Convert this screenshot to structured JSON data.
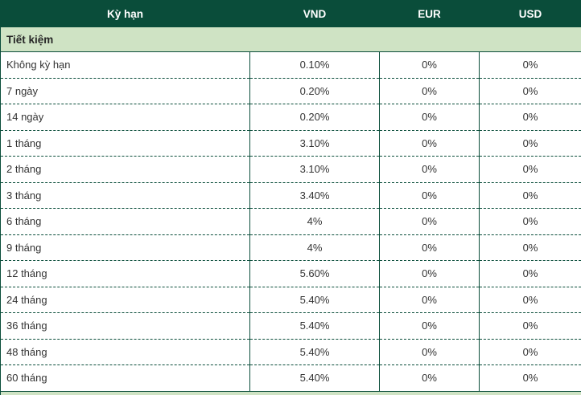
{
  "table": {
    "columns": [
      {
        "key": "term",
        "label": "Kỳ hạn"
      },
      {
        "key": "vnd",
        "label": "VND"
      },
      {
        "key": "eur",
        "label": "EUR"
      },
      {
        "key": "usd",
        "label": "USD"
      }
    ],
    "section": {
      "label": "Tiết kiệm"
    },
    "rows": [
      {
        "term": "Không kỳ hạn",
        "vnd": "0.10%",
        "eur": "0%",
        "usd": "0%"
      },
      {
        "term": "7 ngày",
        "vnd": "0.20%",
        "eur": "0%",
        "usd": "0%"
      },
      {
        "term": "14 ngày",
        "vnd": "0.20%",
        "eur": "0%",
        "usd": "0%"
      },
      {
        "term": "1 tháng",
        "vnd": "3.10%",
        "eur": "0%",
        "usd": "0%"
      },
      {
        "term": "2 tháng",
        "vnd": "3.10%",
        "eur": "0%",
        "usd": "0%"
      },
      {
        "term": "3 tháng",
        "vnd": "3.40%",
        "eur": "0%",
        "usd": "0%"
      },
      {
        "term": "6 tháng",
        "vnd": "4%",
        "eur": "0%",
        "usd": "0%"
      },
      {
        "term": "9 tháng",
        "vnd": "4%",
        "eur": "0%",
        "usd": "0%"
      },
      {
        "term": "12 tháng",
        "vnd": "5.60%",
        "eur": "0%",
        "usd": "0%"
      },
      {
        "term": "24 tháng",
        "vnd": "5.40%",
        "eur": "0%",
        "usd": "0%"
      },
      {
        "term": "36 tháng",
        "vnd": "5.40%",
        "eur": "0%",
        "usd": "0%"
      },
      {
        "term": "48 tháng",
        "vnd": "5.40%",
        "eur": "0%",
        "usd": "0%"
      },
      {
        "term": "60 tháng",
        "vnd": "5.40%",
        "eur": "0%",
        "usd": "0%"
      }
    ]
  },
  "colors": {
    "header_bg": "#0a4d3a",
    "section_bg": "#cfe3c4",
    "border": "#0a4d3a",
    "text": "#333333",
    "header_text": "#ffffff",
    "section_text": "#262626"
  }
}
